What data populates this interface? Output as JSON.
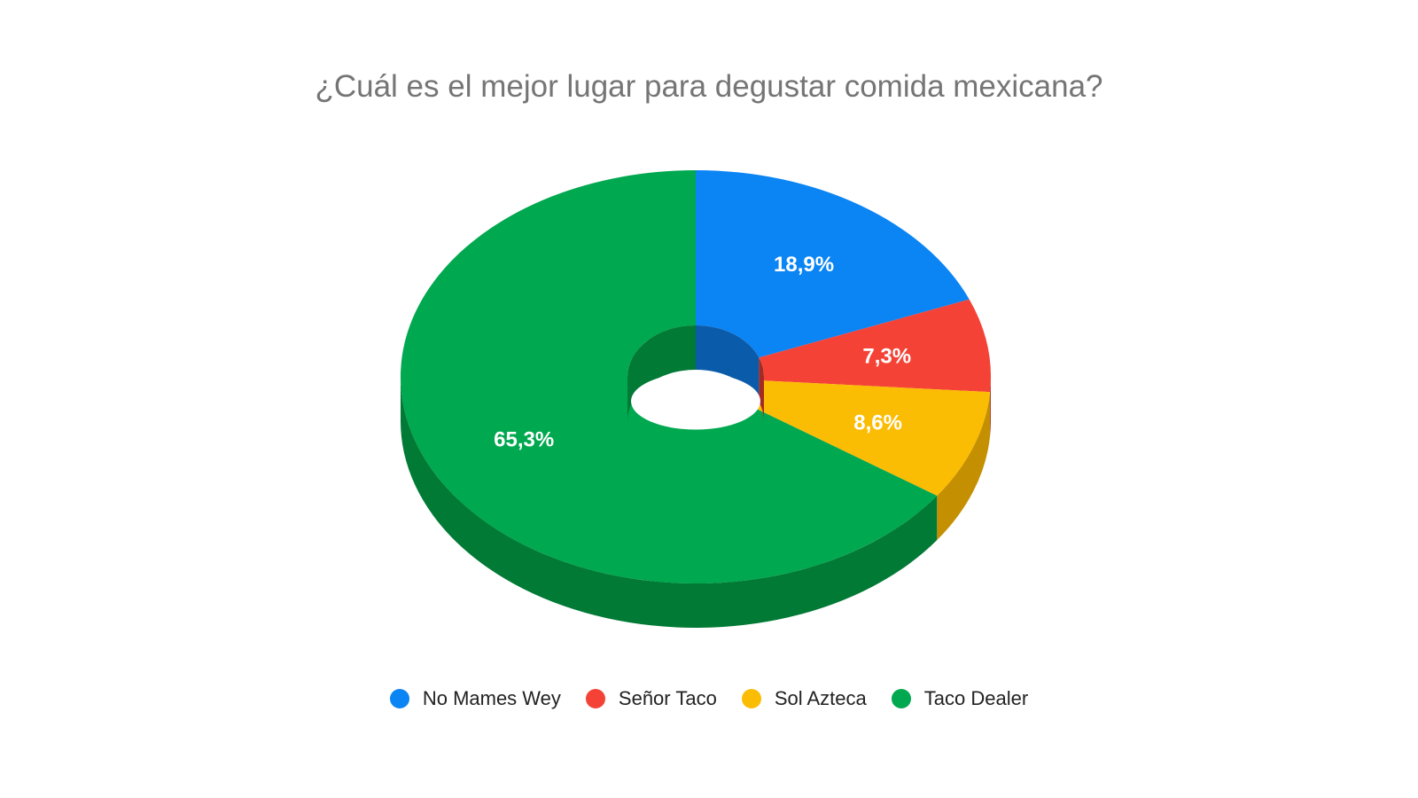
{
  "chart_data": {
    "type": "pie",
    "variant": "3d-donut",
    "title": "¿Cuál es el mejor lugar para degustar comida mexicana?",
    "categories": [
      "No Mames Wey",
      "Señor Taco",
      "Sol Azteca",
      "Taco Dealer"
    ],
    "values": [
      18.9,
      7.3,
      8.6,
      65.3
    ],
    "data_labels": [
      "18,9%",
      "7,3%",
      "8,6%",
      "65,3%"
    ],
    "colors": [
      "#0b84f4",
      "#f44336",
      "#fbbc04",
      "#00a84f"
    ],
    "side_colors": [
      "#0a5cab",
      "#a42a22",
      "#c48f00",
      "#007a35"
    ],
    "legend_position": "bottom",
    "start_angle": "top, clockwise"
  }
}
